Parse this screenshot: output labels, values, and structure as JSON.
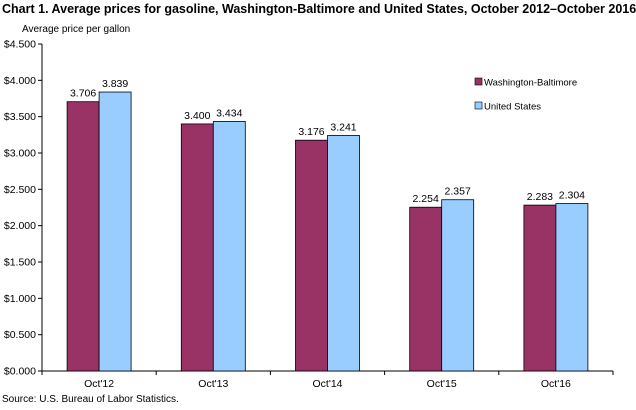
{
  "chart_data": {
    "type": "bar",
    "title": "Chart 1. Average prices for gasoline, Washington-Baltimore and United States, October 2012–October 2016",
    "ylabel": "Average price per gallon",
    "xlabel": "",
    "categories": [
      "Oct'12",
      "Oct'13",
      "Oct'14",
      "Oct'15",
      "Oct'16"
    ],
    "series": [
      {
        "name": "Washington-Baltimore",
        "color": "#993366",
        "values": [
          3.706,
          3.4,
          3.176,
          2.254,
          2.283
        ],
        "labels": [
          "3.706",
          "3.400",
          "3.176",
          "2.254",
          "2.283"
        ]
      },
      {
        "name": "United States",
        "color": "#99CCFF",
        "values": [
          3.839,
          3.434,
          3.241,
          2.357,
          2.304
        ],
        "labels": [
          "3.839",
          "3.434",
          "3.241",
          "2.357",
          "2.304"
        ]
      }
    ],
    "ylim": [
      0,
      4.5
    ],
    "yticks": [
      0,
      0.5,
      1.0,
      1.5,
      2.0,
      2.5,
      3.0,
      3.5,
      4.0,
      4.5
    ],
    "ytick_labels": [
      "$0.000",
      "$0.500",
      "$1.000",
      "$1.500",
      "$2.000",
      "$2.500",
      "$3.000",
      "$3.500",
      "$4.000",
      "$4.500"
    ],
    "grid": false,
    "legend_position": "right"
  },
  "source": "Source: U.S. Bureau of Labor Statistics."
}
